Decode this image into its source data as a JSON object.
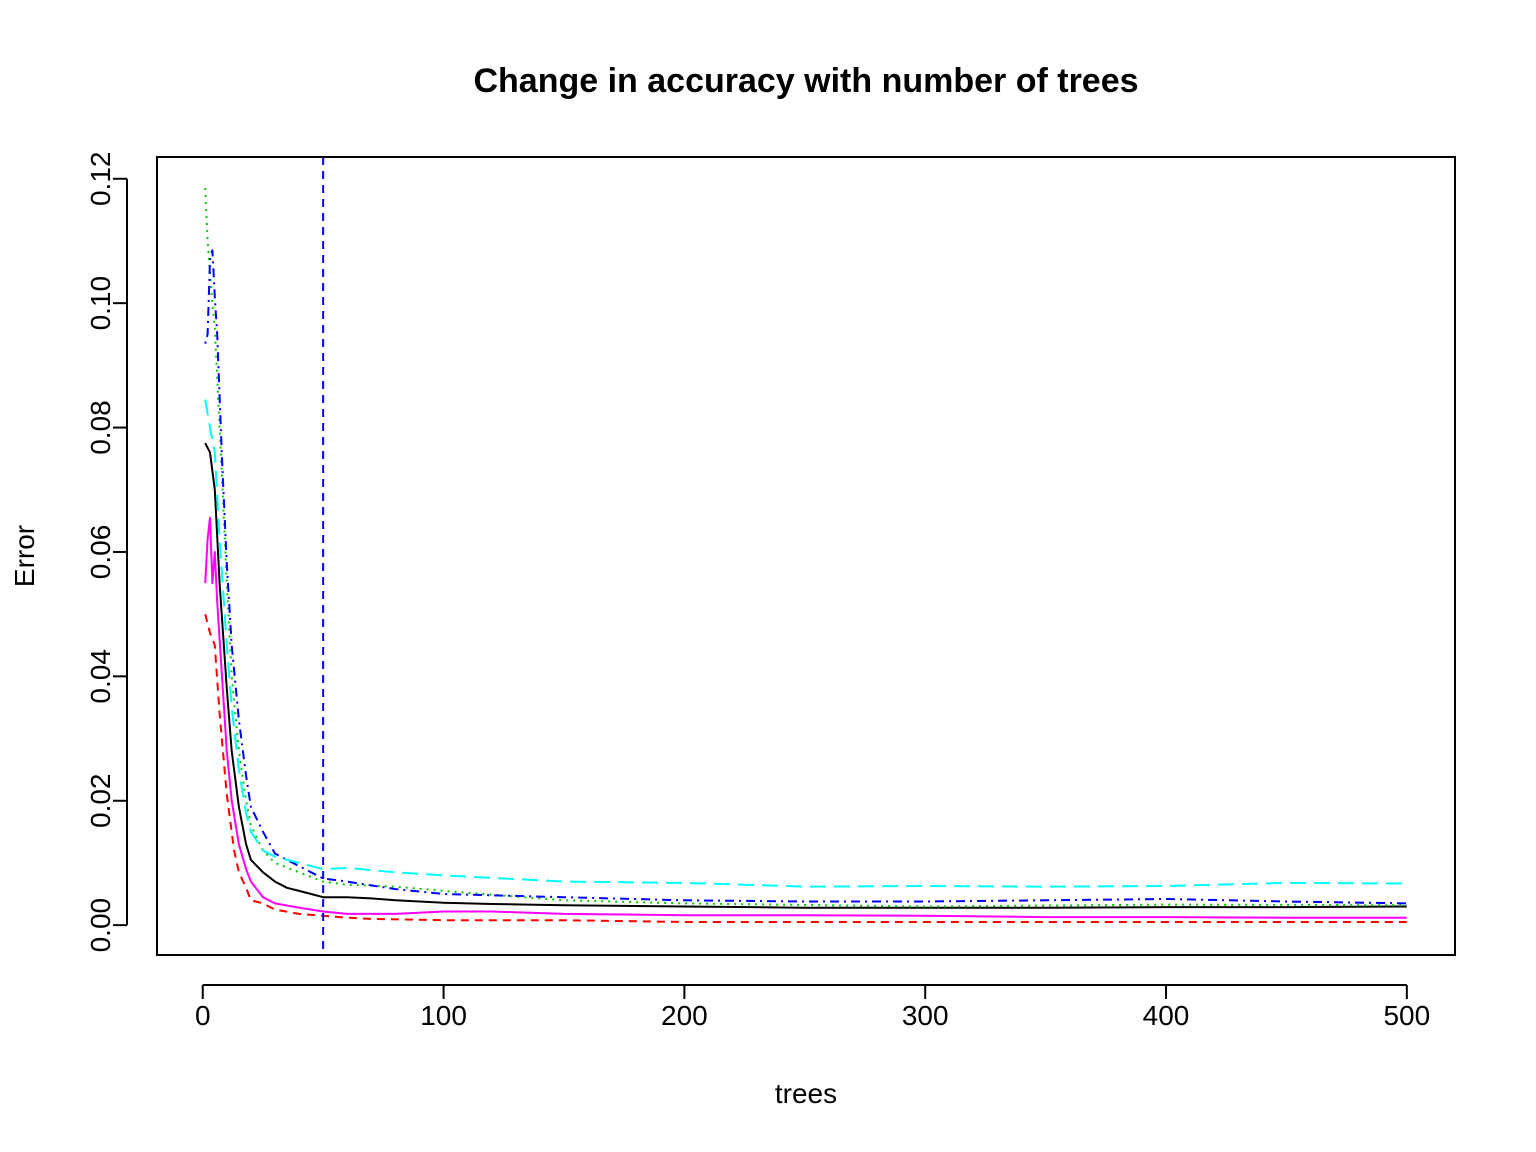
{
  "chart_data": {
    "type": "line",
    "title": "Change in accuracy with number of trees",
    "xlabel": "trees",
    "ylabel": "Error",
    "xlim": [
      -19,
      520
    ],
    "ylim": [
      -0.0048,
      0.1235
    ],
    "x_ticks": [
      0,
      100,
      200,
      300,
      400,
      500
    ],
    "x_tick_labels": [
      "0",
      "100",
      "200",
      "300",
      "400",
      "500"
    ],
    "y_ticks": [
      0.0,
      0.02,
      0.04,
      0.06,
      0.08,
      0.1,
      0.12
    ],
    "y_tick_labels": [
      "0.00",
      "0.02",
      "0.04",
      "0.06",
      "0.08",
      "0.10",
      "0.12"
    ],
    "grid": false,
    "legend": "none",
    "vline": {
      "x": 50,
      "color": "#0000ff",
      "dash": "dashed"
    },
    "series": [
      {
        "color": "#000000",
        "dash": "solid",
        "points": [
          [
            1,
            0.0775
          ],
          [
            3,
            0.076
          ],
          [
            5,
            0.07
          ],
          [
            7,
            0.055
          ],
          [
            10,
            0.038
          ],
          [
            12,
            0.028
          ],
          [
            15,
            0.019
          ],
          [
            18,
            0.013
          ],
          [
            20,
            0.0105
          ],
          [
            25,
            0.0085
          ],
          [
            30,
            0.007
          ],
          [
            35,
            0.006
          ],
          [
            40,
            0.0055
          ],
          [
            45,
            0.005
          ],
          [
            50,
            0.0045
          ],
          [
            60,
            0.0045
          ],
          [
            70,
            0.0043
          ],
          [
            80,
            0.004
          ],
          [
            90,
            0.0038
          ],
          [
            100,
            0.0036
          ],
          [
            120,
            0.0034
          ],
          [
            150,
            0.0032
          ],
          [
            200,
            0.003
          ],
          [
            250,
            0.0028
          ],
          [
            300,
            0.0028
          ],
          [
            350,
            0.0028
          ],
          [
            400,
            0.0029
          ],
          [
            450,
            0.0029
          ],
          [
            500,
            0.003
          ]
        ]
      },
      {
        "color": "#ff0000",
        "dash": "dashed",
        "points": [
          [
            1,
            0.05
          ],
          [
            3,
            0.047
          ],
          [
            5,
            0.045
          ],
          [
            7,
            0.034
          ],
          [
            10,
            0.021
          ],
          [
            13,
            0.012
          ],
          [
            15,
            0.0085
          ],
          [
            18,
            0.006
          ],
          [
            20,
            0.004
          ],
          [
            25,
            0.0035
          ],
          [
            30,
            0.0025
          ],
          [
            40,
            0.0018
          ],
          [
            50,
            0.0015
          ],
          [
            60,
            0.0012
          ],
          [
            70,
            0.001
          ],
          [
            100,
            0.0008
          ],
          [
            150,
            0.0008
          ],
          [
            200,
            0.0005
          ],
          [
            300,
            0.0005
          ],
          [
            400,
            0.0005
          ],
          [
            500,
            0.0005
          ]
        ]
      },
      {
        "color": "#00cd00",
        "dash": "dotted",
        "points": [
          [
            1,
            0.1185
          ],
          [
            2,
            0.11
          ],
          [
            3,
            0.105
          ],
          [
            4,
            0.1
          ],
          [
            5,
            0.096
          ],
          [
            6,
            0.088
          ],
          [
            8,
            0.072
          ],
          [
            10,
            0.055
          ],
          [
            12,
            0.04
          ],
          [
            15,
            0.028
          ],
          [
            18,
            0.02
          ],
          [
            20,
            0.016
          ],
          [
            25,
            0.012
          ],
          [
            30,
            0.01
          ],
          [
            40,
            0.0085
          ],
          [
            50,
            0.007
          ],
          [
            60,
            0.0065
          ],
          [
            80,
            0.0062
          ],
          [
            100,
            0.0055
          ],
          [
            150,
            0.004
          ],
          [
            200,
            0.0035
          ],
          [
            300,
            0.003
          ],
          [
            400,
            0.0033
          ],
          [
            500,
            0.0032
          ]
        ]
      },
      {
        "color": "#0000ff",
        "dash": "dashdot",
        "points": [
          [
            1,
            0.0935
          ],
          [
            2,
            0.095
          ],
          [
            3,
            0.107
          ],
          [
            4,
            0.1085
          ],
          [
            5,
            0.101
          ],
          [
            6,
            0.095
          ],
          [
            8,
            0.075
          ],
          [
            10,
            0.058
          ],
          [
            12,
            0.045
          ],
          [
            15,
            0.033
          ],
          [
            18,
            0.024
          ],
          [
            20,
            0.019
          ],
          [
            25,
            0.015
          ],
          [
            30,
            0.0115
          ],
          [
            40,
            0.0095
          ],
          [
            50,
            0.0075
          ],
          [
            60,
            0.007
          ],
          [
            80,
            0.0058
          ],
          [
            100,
            0.005
          ],
          [
            150,
            0.0045
          ],
          [
            200,
            0.004
          ],
          [
            250,
            0.0038
          ],
          [
            300,
            0.0038
          ],
          [
            350,
            0.004
          ],
          [
            400,
            0.0042
          ],
          [
            450,
            0.0038
          ],
          [
            500,
            0.0035
          ]
        ]
      },
      {
        "color": "#00ffff",
        "dash": "longdash",
        "points": [
          [
            1,
            0.0845
          ],
          [
            3,
            0.08
          ],
          [
            5,
            0.076
          ],
          [
            7,
            0.062
          ],
          [
            10,
            0.045
          ],
          [
            12,
            0.035
          ],
          [
            15,
            0.025
          ],
          [
            18,
            0.018
          ],
          [
            20,
            0.015
          ],
          [
            25,
            0.012
          ],
          [
            30,
            0.011
          ],
          [
            40,
            0.01
          ],
          [
            50,
            0.009
          ],
          [
            60,
            0.0092
          ],
          [
            80,
            0.0085
          ],
          [
            100,
            0.008
          ],
          [
            150,
            0.007
          ],
          [
            200,
            0.0068
          ],
          [
            250,
            0.0062
          ],
          [
            300,
            0.0063
          ],
          [
            350,
            0.0062
          ],
          [
            400,
            0.0063
          ],
          [
            450,
            0.0068
          ],
          [
            500,
            0.0067
          ]
        ]
      },
      {
        "color": "#ff00ff",
        "dash": "solid",
        "points": [
          [
            1,
            0.055
          ],
          [
            2,
            0.062
          ],
          [
            3,
            0.0655
          ],
          [
            4,
            0.055
          ],
          [
            5,
            0.06
          ],
          [
            6,
            0.052
          ],
          [
            8,
            0.04
          ],
          [
            10,
            0.028
          ],
          [
            12,
            0.02
          ],
          [
            15,
            0.013
          ],
          [
            18,
            0.009
          ],
          [
            20,
            0.007
          ],
          [
            25,
            0.0045
          ],
          [
            30,
            0.0035
          ],
          [
            40,
            0.0028
          ],
          [
            50,
            0.0022
          ],
          [
            60,
            0.0018
          ],
          [
            80,
            0.0018
          ],
          [
            100,
            0.0022
          ],
          [
            120,
            0.0022
          ],
          [
            150,
            0.0018
          ],
          [
            200,
            0.0016
          ],
          [
            250,
            0.0016
          ],
          [
            300,
            0.0015
          ],
          [
            350,
            0.0013
          ],
          [
            400,
            0.0013
          ],
          [
            450,
            0.0012
          ],
          [
            500,
            0.0012
          ]
        ]
      }
    ]
  }
}
